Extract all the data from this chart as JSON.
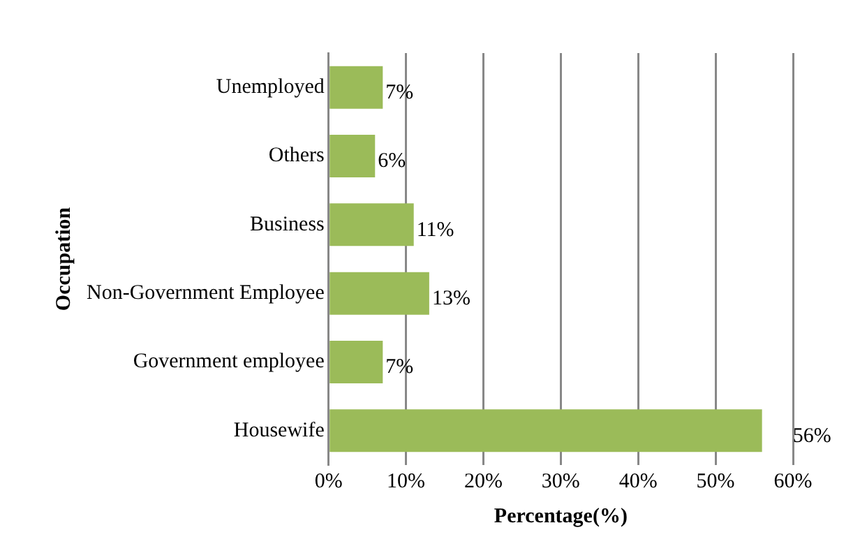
{
  "chart_data": {
    "type": "bar",
    "orientation": "horizontal",
    "xlabel": "Percentage(%)",
    "ylabel": "Occupation",
    "categories": [
      "Unemployed",
      "Others",
      "Business",
      "Non-Government Employee",
      "Government employee",
      "Housewife"
    ],
    "values": [
      7,
      6,
      11,
      13,
      7,
      56
    ],
    "color": "#9bbb59",
    "value_labels": [
      "7%",
      "6%",
      "11%",
      "13%",
      "7%",
      "56%"
    ],
    "xlim": [
      0,
      60
    ],
    "xticks": [
      {
        "value": 0,
        "label": "0%"
      },
      {
        "value": 10,
        "label": "10%"
      },
      {
        "value": 20,
        "label": "20%"
      },
      {
        "value": 30,
        "label": "30%"
      },
      {
        "value": 40,
        "label": "40%"
      },
      {
        "value": 50,
        "label": "50%"
      },
      {
        "value": 60,
        "label": "60%"
      }
    ],
    "grid": "x"
  }
}
